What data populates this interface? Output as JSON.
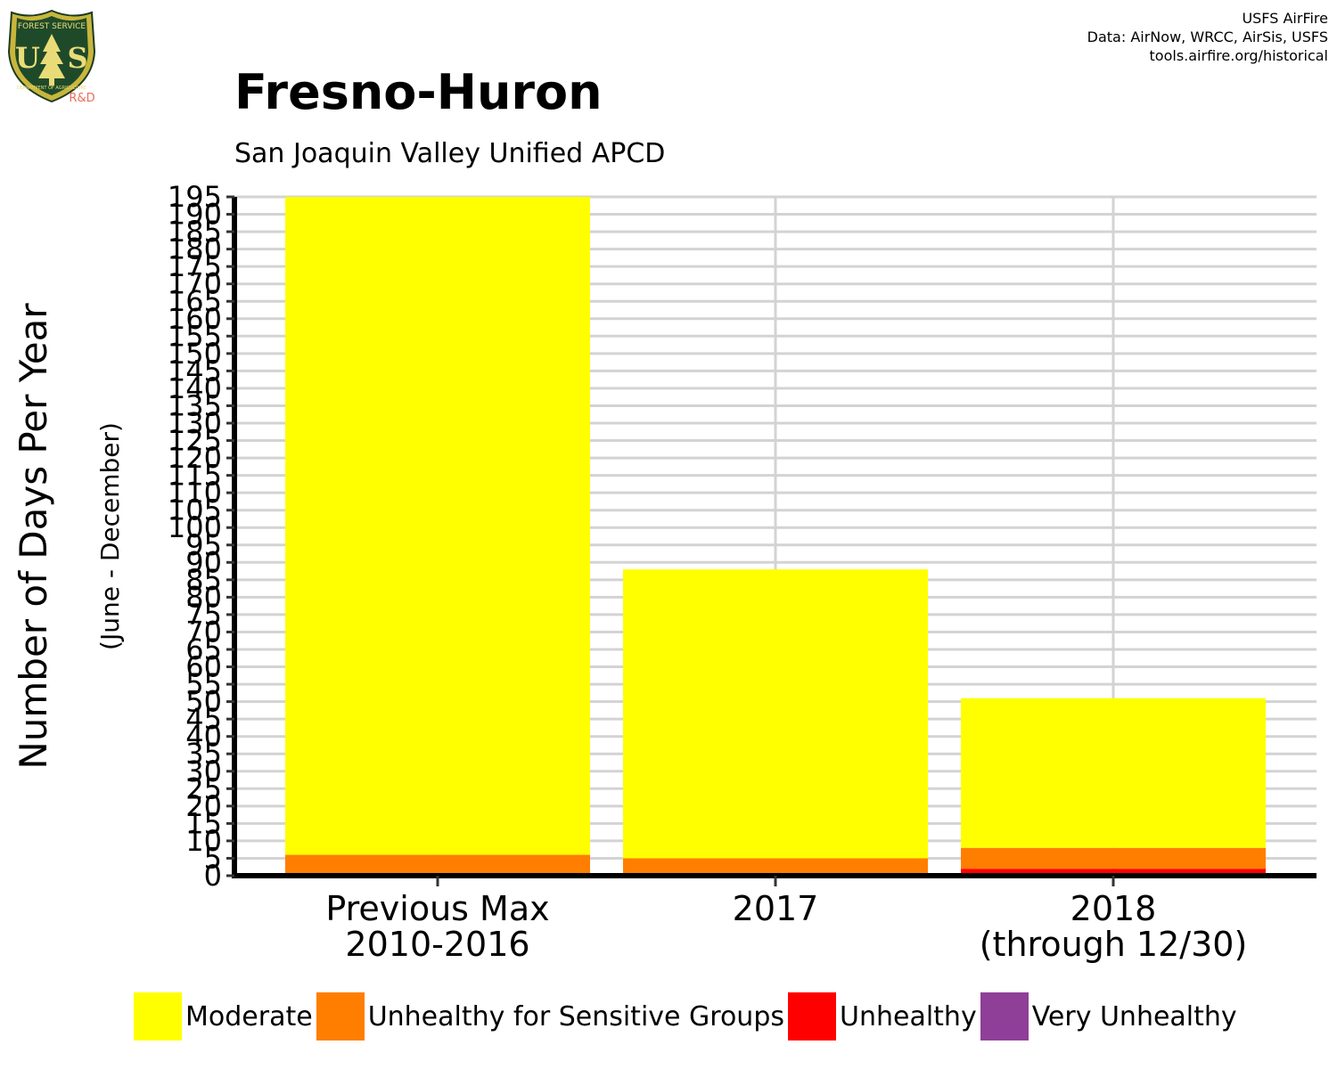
{
  "header": {
    "logo_badge_text": "FOREST SERVICE",
    "logo_letters": "USFS",
    "logo_dept_text": "DEPARTMENT OF AGRICULTURE",
    "logo_rd": "R&D",
    "attribution": [
      "USFS AirFire",
      "Data: AirNow, WRCC, AirSis, USFS",
      "tools.airfire.org/historical"
    ]
  },
  "colors": {
    "Moderate": "#ffff00",
    "Unhealthy for Sensitive Groups": "#ff7e00",
    "Unhealthy": "#ff0000",
    "Very Unhealthy": "#8f3f97",
    "grid": "#d3d3d3"
  },
  "chart_data": {
    "type": "bar",
    "stacked": true,
    "title": "Fresno-Huron",
    "subtitle": "San Joaquin Valley Unified APCD",
    "ylabel": "Number of Days Per Year",
    "ylabel_sub": "(June - December)",
    "xlabel": "",
    "ylim": [
      0,
      195
    ],
    "yticks": [
      0,
      5,
      10,
      15,
      20,
      25,
      30,
      35,
      40,
      45,
      50,
      55,
      60,
      65,
      70,
      75,
      80,
      85,
      90,
      95,
      100,
      105,
      110,
      115,
      120,
      125,
      130,
      135,
      140,
      145,
      150,
      155,
      160,
      165,
      170,
      175,
      180,
      185,
      190,
      195
    ],
    "categories": [
      [
        "Previous Max",
        "2010-2016"
      ],
      [
        "2017"
      ],
      [
        "2018",
        "(through 12/30)"
      ]
    ],
    "series": [
      {
        "name": "Unhealthy",
        "values": [
          0,
          0,
          2
        ]
      },
      {
        "name": "Unhealthy for Sensitive Groups",
        "values": [
          6,
          5,
          6
        ]
      },
      {
        "name": "Moderate",
        "values": [
          189,
          83,
          43
        ]
      },
      {
        "name": "Very Unhealthy",
        "values": [
          0,
          0,
          0
        ]
      }
    ],
    "grid": true,
    "legend_position": "bottom",
    "legend": [
      "Moderate",
      "Unhealthy for Sensitive Groups",
      "Unhealthy",
      "Very Unhealthy"
    ]
  }
}
